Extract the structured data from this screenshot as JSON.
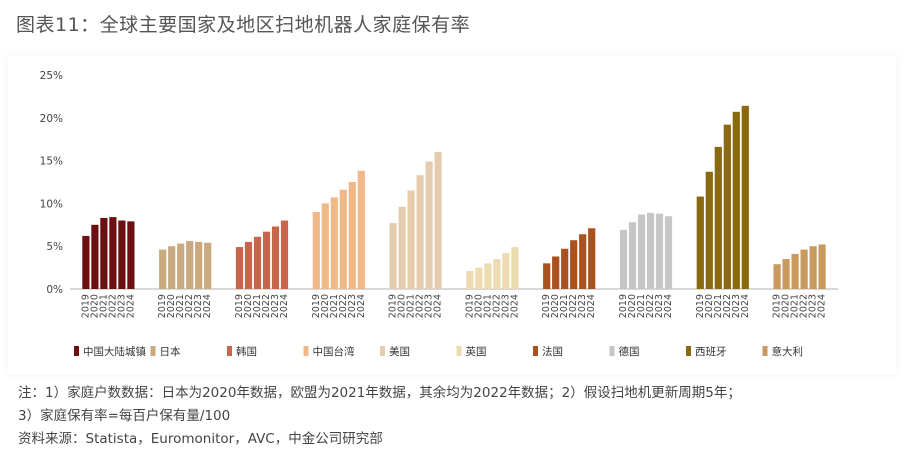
{
  "title": "图表11：全球主要国家及地区扫地机器人家庭保有率",
  "chart_data": {
    "type": "bar",
    "title": "图表11：全球主要国家及地区扫地机器人家庭保有率",
    "xlabel": "",
    "ylabel": "",
    "ylim": [
      0,
      25
    ],
    "yticks": [
      "0%",
      "5%",
      "10%",
      "15%",
      "20%",
      "25%"
    ],
    "grid": false,
    "legend_position": "bottom",
    "years": [
      "2019",
      "2020",
      "2021",
      "2022",
      "2023",
      "2024"
    ],
    "series": [
      {
        "name": "中国大陆城镇",
        "color": "#6b0f10",
        "values": [
          6.2,
          7.5,
          8.3,
          8.4,
          8.0,
          7.9
        ]
      },
      {
        "name": "日本",
        "color": "#c9a97f",
        "values": [
          4.6,
          5.0,
          5.3,
          5.6,
          5.5,
          5.4
        ]
      },
      {
        "name": "韩国",
        "color": "#c8664b",
        "values": [
          4.9,
          5.5,
          6.1,
          6.7,
          7.3,
          8.0
        ]
      },
      {
        "name": "中国台湾",
        "color": "#f0b787",
        "values": [
          9.0,
          10.0,
          10.7,
          11.6,
          12.5,
          13.8
        ]
      },
      {
        "name": "美国",
        "color": "#e6ccae",
        "values": [
          7.7,
          9.6,
          11.5,
          13.3,
          14.9,
          16.0
        ]
      },
      {
        "name": "英国",
        "color": "#ecdcb0",
        "values": [
          2.1,
          2.5,
          3.0,
          3.5,
          4.2,
          4.9
        ]
      },
      {
        "name": "法国",
        "color": "#a9521f",
        "values": [
          3.0,
          3.8,
          4.7,
          5.7,
          6.4,
          7.1
        ]
      },
      {
        "name": "德国",
        "color": "#c6c6c6",
        "values": [
          6.9,
          7.8,
          8.7,
          8.9,
          8.8,
          8.5
        ]
      },
      {
        "name": "西班牙",
        "color": "#8a6a10",
        "values": [
          10.8,
          13.7,
          16.6,
          19.2,
          20.7,
          21.4
        ]
      },
      {
        "name": "意大利",
        "color": "#c99a5e",
        "values": [
          2.9,
          3.5,
          4.1,
          4.6,
          5.0,
          5.2
        ]
      }
    ]
  },
  "notes": {
    "line1": "注：1）家庭户数数据：日本为2020年数据，欧盟为2021年数据，其余均为2022年数据；2）假设扫地机更新周期5年；",
    "line2": "3）家庭保有率=每百户保有量/100",
    "source": "资料来源：Statista，Euromonitor，AVC，中金公司研究部"
  }
}
